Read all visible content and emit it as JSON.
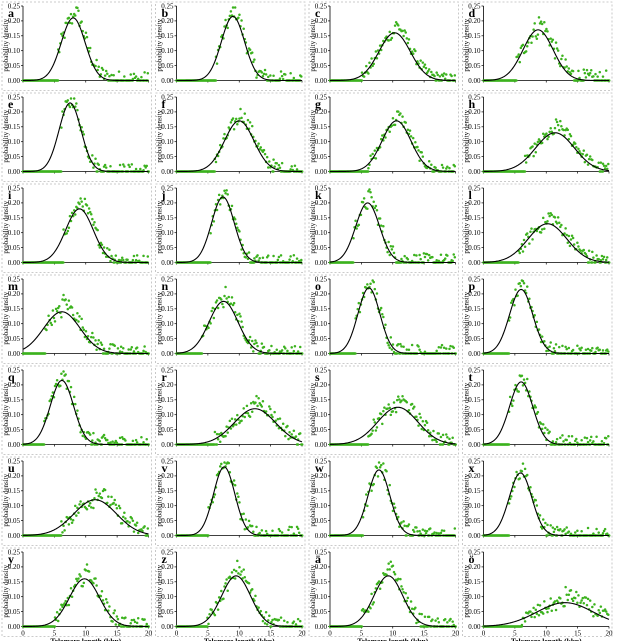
{
  "figure": {
    "xlabel": "Telomere length (kbp)",
    "ylabel": "probability density",
    "colors": {
      "points": "#3cb21e",
      "curve": "#000000",
      "frame": "#bbbbbb"
    }
  },
  "chart_data": {
    "type": "scatter",
    "description_of_series": [
      "measured density (points)",
      "normal fit (line)"
    ],
    "xlim": [
      0,
      20
    ],
    "ylim": [
      0,
      0.25
    ],
    "x_ticks": [
      0,
      5,
      10,
      15,
      20
    ],
    "x_tick_labels": [
      "0",
      "5",
      "10",
      "15",
      "20"
    ],
    "y_ticks": [
      0,
      0.05,
      0.1,
      0.15,
      0.2,
      0.25
    ],
    "y_tick_labels": [
      "0.00",
      "0.05",
      "0.10",
      "0.15",
      "0.20",
      "0.25"
    ],
    "panels": [
      {
        "label": "a",
        "mean": 8.0,
        "sd": 1.9,
        "peak": 0.21,
        "spread": 0.035,
        "tail": 0.03,
        "onset": 5.6
      },
      {
        "label": "b",
        "mean": 9.0,
        "sd": 1.85,
        "peak": 0.215,
        "spread": 0.035,
        "tail": 0.025,
        "onset": 6.2
      },
      {
        "label": "c",
        "mean": 10.3,
        "sd": 2.5,
        "peak": 0.16,
        "spread": 0.025,
        "tail": 0.03,
        "onset": 5.0
      },
      {
        "label": "d",
        "mean": 8.7,
        "sd": 2.4,
        "peak": 0.17,
        "spread": 0.04,
        "tail": 0.025,
        "onset": 5.2
      },
      {
        "label": "e",
        "mean": 7.5,
        "sd": 1.75,
        "peak": 0.23,
        "spread": 0.03,
        "tail": 0.02,
        "onset": 6.0
      },
      {
        "label": "f",
        "mean": 10.0,
        "sd": 2.35,
        "peak": 0.17,
        "spread": 0.03,
        "tail": 0.025,
        "onset": 6.0
      },
      {
        "label": "g",
        "mean": 10.6,
        "sd": 2.3,
        "peak": 0.17,
        "spread": 0.025,
        "tail": 0.02,
        "onset": 6.0
      },
      {
        "label": "h",
        "mean": 11.4,
        "sd": 3.1,
        "peak": 0.13,
        "spread": 0.025,
        "tail": 0.03,
        "onset": 6.5
      },
      {
        "label": "i",
        "mean": 9.0,
        "sd": 2.2,
        "peak": 0.18,
        "spread": 0.03,
        "tail": 0.03,
        "onset": 6.4
      },
      {
        "label": "j",
        "mean": 7.4,
        "sd": 1.8,
        "peak": 0.22,
        "spread": 0.03,
        "tail": 0.02,
        "onset": 5.3
      },
      {
        "label": "k",
        "mean": 6.0,
        "sd": 1.9,
        "peak": 0.2,
        "spread": 0.035,
        "tail": 0.025,
        "onset": 3.6
      },
      {
        "label": "l",
        "mean": 10.2,
        "sd": 3.1,
        "peak": 0.13,
        "spread": 0.03,
        "tail": 0.03,
        "onset": 5.5
      },
      {
        "label": "m",
        "mean": 6.2,
        "sd": 2.9,
        "peak": 0.14,
        "spread": 0.03,
        "tail": 0.04,
        "onset": 3.5
      },
      {
        "label": "n",
        "mean": 7.5,
        "sd": 2.3,
        "peak": 0.175,
        "spread": 0.03,
        "tail": 0.03,
        "onset": 4.0
      },
      {
        "label": "o",
        "mean": 6.2,
        "sd": 1.75,
        "peak": 0.22,
        "spread": 0.035,
        "tail": 0.02,
        "onset": 4.0
      },
      {
        "label": "p",
        "mean": 6.0,
        "sd": 1.85,
        "peak": 0.215,
        "spread": 0.03,
        "tail": 0.02,
        "onset": 4.0
      },
      {
        "label": "q",
        "mean": 6.2,
        "sd": 1.85,
        "peak": 0.215,
        "spread": 0.035,
        "tail": 0.02,
        "onset": 3.3
      },
      {
        "label": "r",
        "mean": 12.5,
        "sd": 3.3,
        "peak": 0.12,
        "spread": 0.03,
        "tail": 0.03,
        "onset": 6.0
      },
      {
        "label": "s",
        "mean": 10.8,
        "sd": 3.2,
        "peak": 0.125,
        "spread": 0.03,
        "tail": 0.03,
        "onset": 6.0
      },
      {
        "label": "t",
        "mean": 6.0,
        "sd": 1.85,
        "peak": 0.21,
        "spread": 0.035,
        "tail": 0.02,
        "onset": 4.0
      },
      {
        "label": "u",
        "mean": 11.5,
        "sd": 3.4,
        "peak": 0.12,
        "spread": 0.035,
        "tail": 0.03,
        "onset": 6.0
      },
      {
        "label": "v",
        "mean": 7.6,
        "sd": 1.7,
        "peak": 0.23,
        "spread": 0.035,
        "tail": 0.02,
        "onset": 5.0
      },
      {
        "label": "w",
        "mean": 7.8,
        "sd": 1.75,
        "peak": 0.22,
        "spread": 0.035,
        "tail": 0.02,
        "onset": 5.2
      },
      {
        "label": "x",
        "mean": 5.9,
        "sd": 1.8,
        "peak": 0.21,
        "spread": 0.03,
        "tail": 0.02,
        "onset": 4.0
      },
      {
        "label": "y",
        "mean": 9.8,
        "sd": 2.4,
        "peak": 0.16,
        "spread": 0.03,
        "tail": 0.03,
        "onset": 5.0
      },
      {
        "label": "z",
        "mean": 9.5,
        "sd": 2.3,
        "peak": 0.17,
        "spread": 0.03,
        "tail": 0.03,
        "onset": 4.8
      },
      {
        "label": "ä",
        "mean": 9.3,
        "sd": 2.3,
        "peak": 0.17,
        "spread": 0.03,
        "tail": 0.03,
        "onset": 5.0
      },
      {
        "label": "ö",
        "mean": 13.0,
        "sd": 4.5,
        "peak": 0.08,
        "spread": 0.03,
        "tail": 0.03,
        "onset": 6.0
      }
    ]
  }
}
